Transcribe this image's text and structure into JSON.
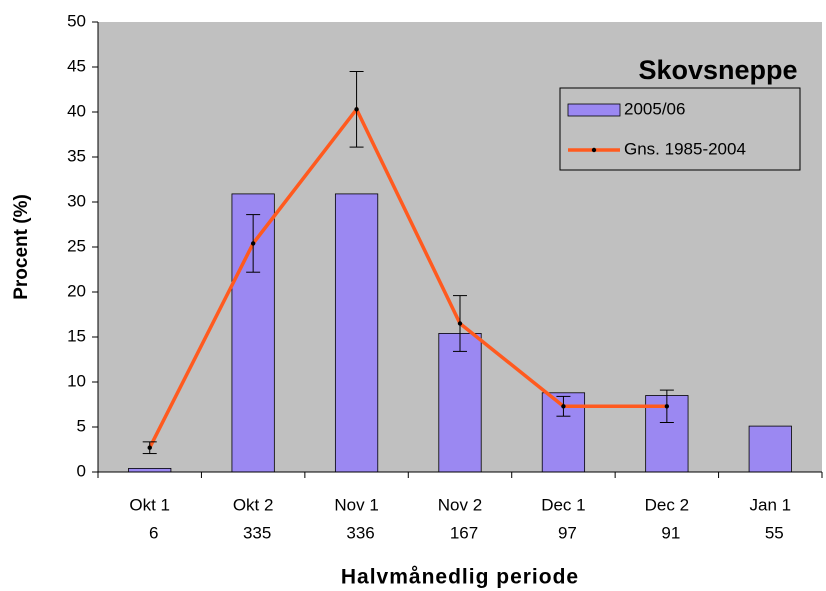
{
  "chart_data": {
    "type": "bar",
    "title": "Skovsneppe",
    "x_label": "Halvmånedlig periode",
    "y_label": "Procent (%)",
    "categories": [
      "Okt 1",
      "Okt 2",
      "Nov 1",
      "Nov 2",
      "Dec 1",
      "Dec 2",
      "Jan 1"
    ],
    "category_counts": [
      6,
      335,
      336,
      167,
      97,
      91,
      55
    ],
    "series": [
      {
        "name": "2005/06",
        "type": "bar",
        "color": "#9b88f2",
        "values": [
          0.4,
          30.9,
          30.9,
          15.4,
          8.8,
          8.5,
          5.1
        ]
      },
      {
        "name": "Gns. 1985-2004",
        "type": "line",
        "color": "#ff5a1f",
        "values": [
          2.7,
          25.4,
          40.3,
          16.5,
          7.3,
          7.3,
          null
        ],
        "errors": [
          0.65,
          3.2,
          4.2,
          3.1,
          1.1,
          1.8,
          null
        ]
      }
    ],
    "ylim": [
      0,
      50
    ],
    "yticks": [
      0,
      5,
      10,
      15,
      20,
      25,
      30,
      35,
      40,
      45,
      50
    ],
    "legend": "upper right"
  }
}
